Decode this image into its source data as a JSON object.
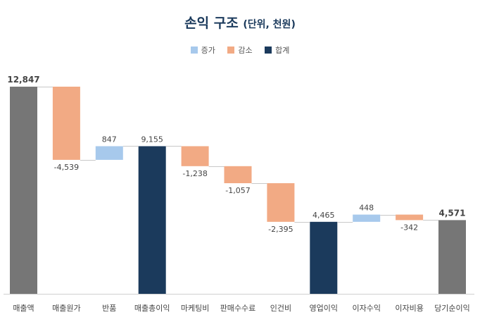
{
  "chart_data": {
    "type": "waterfall",
    "title": "손익 구조",
    "subtitle": "(단위, 천원)",
    "legend": [
      {
        "name": "증가",
        "color": "#a7c9ec"
      },
      {
        "name": "감소",
        "color": "#f2aa84"
      },
      {
        "name": "합계",
        "color": "#1b3a5c"
      }
    ],
    "legend_position": "top",
    "categories": [
      "매출액",
      "매출원가",
      "반품",
      "매출총이익",
      "마케팅비",
      "판매수수료",
      "인건비",
      "영업이익",
      "이자수익",
      "이자비용",
      "당기순이익"
    ],
    "values": [
      12847,
      -4539,
      847,
      9155,
      -1238,
      -1057,
      -2395,
      4465,
      448,
      -342,
      4571
    ],
    "labels": [
      "12,847",
      "-4,539",
      "847",
      "9,155",
      "-1,238",
      "-1,057",
      "-2,395",
      "4,465",
      "448",
      "-342",
      "4,571"
    ],
    "kinds": [
      "total",
      "decrease",
      "increase",
      "subtotal",
      "decrease",
      "decrease",
      "decrease",
      "subtotal",
      "increase",
      "decrease",
      "total"
    ],
    "colors": {
      "total": "#767676",
      "subtotal": "#1b3a5c",
      "increase": "#a7c9ec",
      "decrease": "#f2aa84"
    },
    "ylim": [
      0,
      12847
    ],
    "grid": false
  }
}
